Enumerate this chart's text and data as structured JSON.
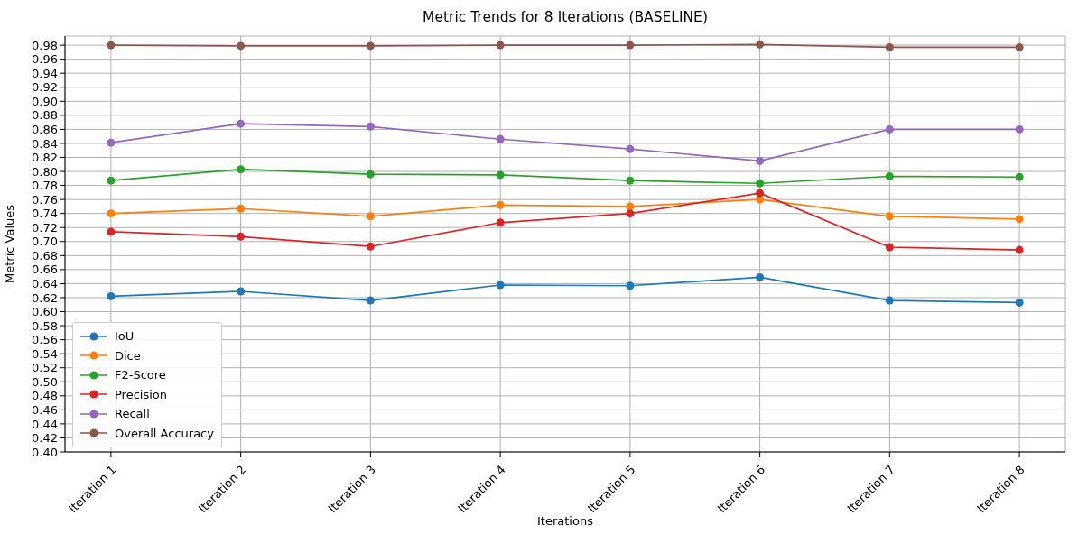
{
  "chart_data": {
    "type": "line",
    "title": "Metric Trends for 8 Iterations (BASELINE)",
    "xlabel": "Iterations",
    "ylabel": "Metric Values",
    "categories": [
      "Iteration 1",
      "Iteration 2",
      "Iteration 3",
      "Iteration 4",
      "Iteration 5",
      "Iteration 6",
      "Iteration 7",
      "Iteration 8"
    ],
    "series": [
      {
        "name": "IoU",
        "color": "#1f77b4",
        "values": [
          0.622,
          0.629,
          0.616,
          0.638,
          0.637,
          0.649,
          0.616,
          0.613
        ]
      },
      {
        "name": "Dice",
        "color": "#ff7f0e",
        "values": [
          0.74,
          0.747,
          0.736,
          0.752,
          0.75,
          0.76,
          0.736,
          0.732
        ]
      },
      {
        "name": "F2-Score",
        "color": "#2ca02c",
        "values": [
          0.787,
          0.803,
          0.796,
          0.795,
          0.787,
          0.783,
          0.793,
          0.792
        ]
      },
      {
        "name": "Precision",
        "color": "#d62728",
        "values": [
          0.714,
          0.707,
          0.693,
          0.727,
          0.74,
          0.769,
          0.692,
          0.688
        ]
      },
      {
        "name": "Recall",
        "color": "#9467bd",
        "values": [
          0.841,
          0.868,
          0.864,
          0.846,
          0.832,
          0.815,
          0.86,
          0.86
        ]
      },
      {
        "name": "Overall Accuracy",
        "color": "#8c564b",
        "values": [
          0.98,
          0.979,
          0.979,
          0.98,
          0.98,
          0.981,
          0.977,
          0.977
        ]
      }
    ],
    "ylim": [
      0.4,
      0.993
    ],
    "yticks": [
      {
        "value": 0.4,
        "label": "0.40"
      },
      {
        "value": 0.42,
        "label": "0.42"
      },
      {
        "value": 0.44,
        "label": "0.44"
      },
      {
        "value": 0.46,
        "label": "0.46"
      },
      {
        "value": 0.48,
        "label": "0.48"
      },
      {
        "value": 0.5,
        "label": "0.50"
      },
      {
        "value": 0.52,
        "label": "0.52"
      },
      {
        "value": 0.54,
        "label": "0.54"
      },
      {
        "value": 0.56,
        "label": "0.56"
      },
      {
        "value": 0.58,
        "label": "0.58"
      },
      {
        "value": 0.6,
        "label": "0.60"
      },
      {
        "value": 0.62,
        "label": "0.62"
      },
      {
        "value": 0.64,
        "label": "0.64"
      },
      {
        "value": 0.66,
        "label": "0.66"
      },
      {
        "value": 0.68,
        "label": "0.68"
      },
      {
        "value": 0.7,
        "label": "0.70"
      },
      {
        "value": 0.72,
        "label": "0.72"
      },
      {
        "value": 0.74,
        "label": "0.74"
      },
      {
        "value": 0.76,
        "label": "0.76"
      },
      {
        "value": 0.78,
        "label": "0.78"
      },
      {
        "value": 0.8,
        "label": "0.80"
      },
      {
        "value": 0.82,
        "label": "0.82"
      },
      {
        "value": 0.84,
        "label": "0.84"
      },
      {
        "value": 0.86,
        "label": "0.86"
      },
      {
        "value": 0.88,
        "label": "0.88"
      },
      {
        "value": 0.9,
        "label": "0.90"
      },
      {
        "value": 0.92,
        "label": "0.92"
      },
      {
        "value": 0.94,
        "label": "0.94"
      },
      {
        "value": 0.96,
        "label": "0.96"
      },
      {
        "value": 0.98,
        "label": "0.98"
      }
    ],
    "grid": true,
    "legend": "bottom left",
    "marker": "circle",
    "line_style": "solid"
  }
}
